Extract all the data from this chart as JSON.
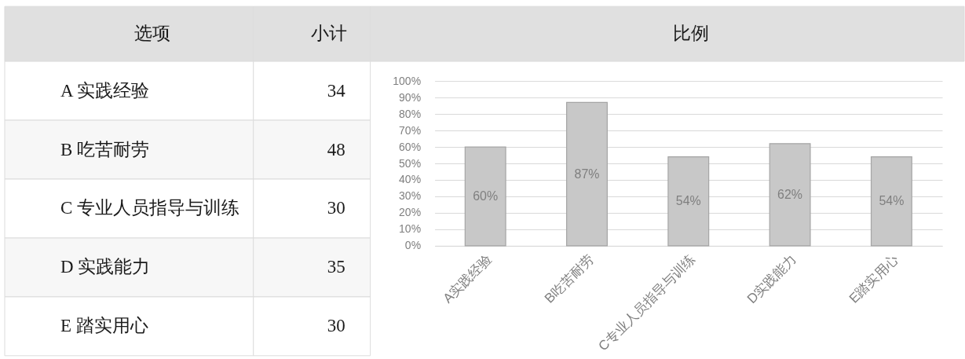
{
  "chart_data": [
    {
      "type": "other",
      "annotations": [
        "选项",
        "小计"
      ],
      "categories": [
        "A 实践经验",
        "B 吃苦耐劳",
        "C 专业人员指导与训练",
        "D 实践能力",
        "E 踏实用心"
      ],
      "values": [
        34,
        48,
        30,
        35,
        30
      ],
      "data_labels": true
    },
    {
      "type": "bar",
      "title": "比例",
      "categories": [
        "A实践经验",
        "B吃苦耐劳",
        "C专业人员指导与训练",
        "D实践能力",
        "E踏实用心"
      ],
      "values": [
        60,
        87,
        54,
        62,
        54
      ],
      "color": "#c8c8c8",
      "value_labels": [
        "60%",
        "87%",
        "54%",
        "62%",
        "54%"
      ],
      "ylim": [
        0,
        100
      ],
      "yticks": [
        {
          "value": 0,
          "label": "0%"
        },
        {
          "value": 10,
          "label": "10%"
        },
        {
          "value": 20,
          "label": "20%"
        },
        {
          "value": 30,
          "label": "30%"
        },
        {
          "value": 40,
          "label": "40%"
        },
        {
          "value": 50,
          "label": "50%"
        },
        {
          "value": 60,
          "label": "60%"
        },
        {
          "value": 70,
          "label": "70%"
        },
        {
          "value": 80,
          "label": "80%"
        },
        {
          "value": 90,
          "label": "90%"
        },
        {
          "value": 100,
          "label": "100%"
        }
      ],
      "grid": "y"
    }
  ]
}
